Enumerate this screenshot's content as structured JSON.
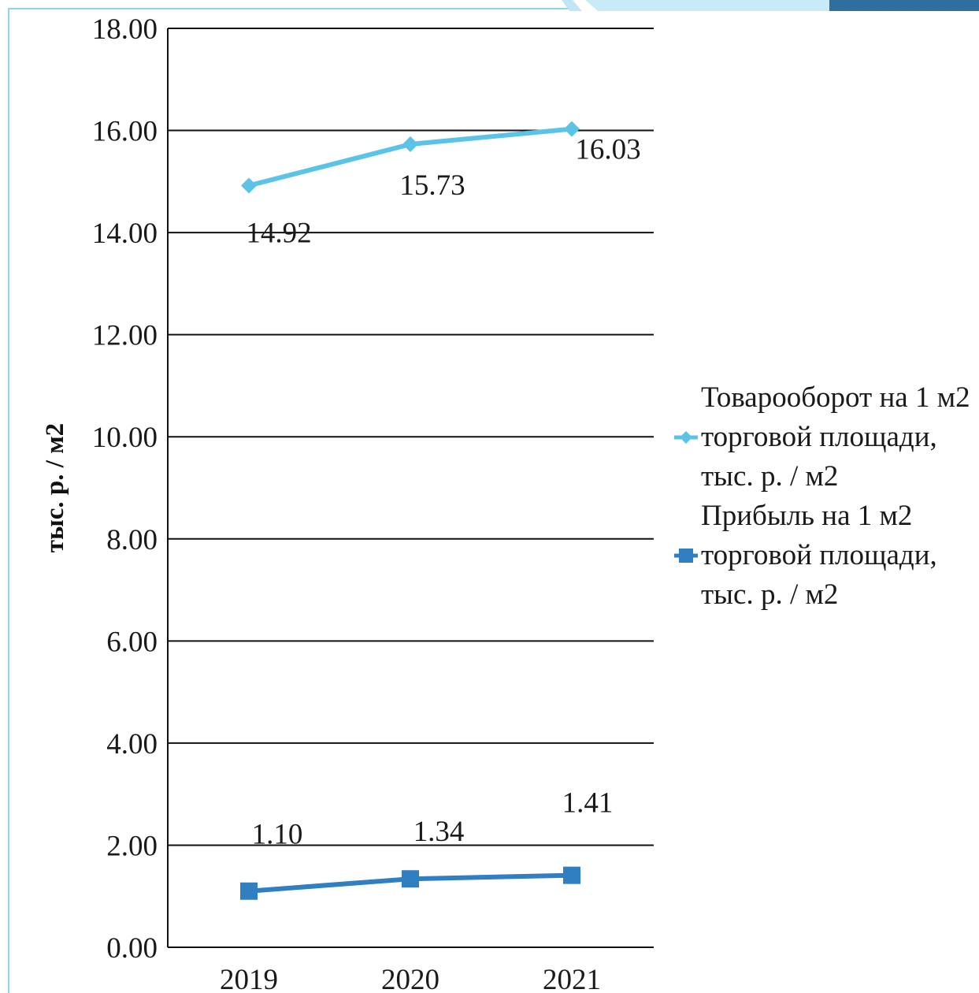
{
  "chart_data": {
    "type": "line",
    "categories": [
      "2019",
      "2020",
      "2021"
    ],
    "ylim": [
      0,
      18
    ],
    "yticks": [
      "0.00",
      "2.00",
      "4.00",
      "6.00",
      "8.00",
      "10.00",
      "12.00",
      "14.00",
      "16.00",
      "18.00"
    ],
    "ylabel": "тыс. р. / м2",
    "xlabel": "",
    "title": "",
    "grid": true,
    "legend_position": "right",
    "series": [
      {
        "name": "Товарооборот на 1 м2 торговой площади, тыс. р. / м2",
        "values": [
          14.92,
          15.73,
          16.03
        ],
        "labels": [
          "14.92",
          "15.73",
          "16.03"
        ],
        "color": "#5bc4e6",
        "marker": "diamond"
      },
      {
        "name": "Прибыль на 1 м2 торговой площади, тыс. р. / м2",
        "values": [
          1.1,
          1.34,
          1.41
        ],
        "labels": [
          "1.10",
          "1.34",
          "1.41"
        ],
        "color": "#2f7fc1",
        "marker": "square"
      }
    ]
  },
  "frame": {
    "accent": "#8fd3ea",
    "deco_dark": "#2f6f9f",
    "deco_light": "#c8ecf7"
  }
}
